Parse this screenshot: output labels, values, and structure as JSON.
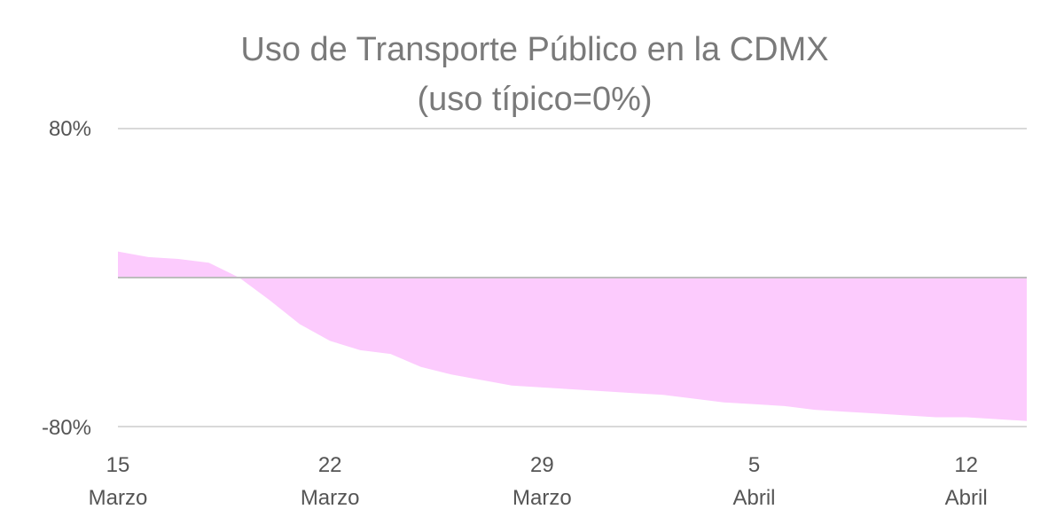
{
  "chart_data": {
    "type": "area",
    "title": "Uso de Transporte Público en la CDMX",
    "subtitle": "(uso típico=0%)",
    "xlabel": "",
    "ylabel": "",
    "ylim": [
      -80,
      80
    ],
    "y_ticks": [
      "80%",
      "-80%"
    ],
    "x_ticks": [
      {
        "day": "15",
        "month": "Marzo"
      },
      {
        "day": "22",
        "month": "Marzo"
      },
      {
        "day": "29",
        "month": "Marzo"
      },
      {
        "day": "5",
        "month": "Abril"
      },
      {
        "day": "12",
        "month": "Abril"
      }
    ],
    "grid": true,
    "colors": {
      "fill": "#fccbfd",
      "zero_line": "#bdbdbd",
      "grid": "#d9d9d9",
      "text": "#7a7a7a"
    },
    "x": [
      "2020-03-15",
      "2020-03-16",
      "2020-03-17",
      "2020-03-18",
      "2020-03-19",
      "2020-03-20",
      "2020-03-21",
      "2020-03-22",
      "2020-03-23",
      "2020-03-24",
      "2020-03-25",
      "2020-03-26",
      "2020-03-27",
      "2020-03-28",
      "2020-03-29",
      "2020-03-30",
      "2020-03-31",
      "2020-04-01",
      "2020-04-02",
      "2020-04-03",
      "2020-04-04",
      "2020-04-05",
      "2020-04-06",
      "2020-04-07",
      "2020-04-08",
      "2020-04-09",
      "2020-04-10",
      "2020-04-11",
      "2020-04-12",
      "2020-04-13",
      "2020-04-14"
    ],
    "values": [
      14,
      11,
      10,
      8,
      0,
      -12,
      -25,
      -34,
      -39,
      -41,
      -48,
      -52,
      -55,
      -58,
      -59,
      -60,
      -61,
      -62,
      -63,
      -65,
      -67,
      -68,
      -69,
      -71,
      -72,
      -73,
      -74,
      -75,
      -75,
      -76,
      -77
    ]
  }
}
